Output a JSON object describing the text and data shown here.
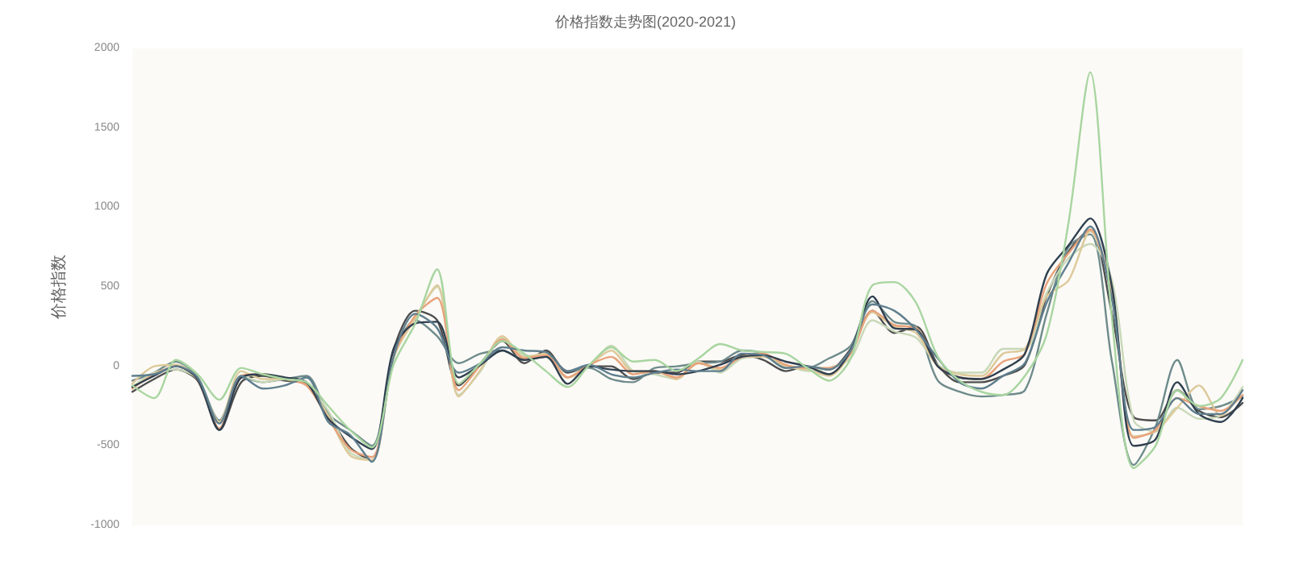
{
  "chart_data": {
    "type": "line",
    "title": "价格指数走势图(2020-2021)",
    "ylabel": "价格指数",
    "categories": [
      null,
      null,
      null,
      null,
      null,
      null,
      null,
      null,
      null,
      null,
      null,
      null,
      null,
      null,
      null,
      null,
      null,
      null,
      null,
      null,
      null,
      null,
      null,
      null,
      null,
      null,
      null,
      null,
      null,
      null,
      null,
      null,
      null,
      null,
      null,
      null,
      null,
      null,
      null,
      null,
      null,
      null,
      null,
      null,
      null,
      null,
      null,
      null,
      null,
      null,
      null,
      null
    ],
    "ylim": [
      -1000,
      2000
    ],
    "yticks": [
      -1000,
      -500,
      0,
      500,
      1000,
      1500,
      2000
    ],
    "grid": false,
    "marker": "none",
    "line_style": "solid",
    "series": [
      {
        "color": "#4d4d4d",
        "values": [
          -160,
          -80,
          -20,
          -90,
          -400,
          -100,
          -60,
          -90,
          -110,
          -300,
          -510,
          -590,
          100,
          350,
          290,
          -120,
          20,
          160,
          20,
          100,
          -40,
          0,
          0,
          -80,
          -40,
          -40,
          30,
          30,
          70,
          40,
          -30,
          0,
          -20,
          110,
          350,
          210,
          250,
          10,
          -100,
          -100,
          -60,
          10,
          440,
          720,
          860,
          330,
          -320,
          -340,
          -150,
          -280,
          -320,
          -230
        ]
      },
      {
        "color": "#6e8b8b",
        "values": [
          -90,
          -40,
          30,
          -70,
          -340,
          -70,
          -100,
          -80,
          -60,
          -300,
          -400,
          -500,
          60,
          290,
          190,
          20,
          80,
          100,
          40,
          60,
          -30,
          -10,
          -80,
          -100,
          -10,
          0,
          20,
          30,
          100,
          80,
          -10,
          -10,
          50,
          130,
          410,
          280,
          250,
          -90,
          -160,
          -190,
          -180,
          -150,
          330,
          750,
          830,
          30,
          -620,
          -380,
          40,
          -270,
          -250,
          -190
        ]
      },
      {
        "color": "#c8d8b8",
        "values": [
          -130,
          -40,
          -20,
          -80,
          -350,
          -60,
          -100,
          -80,
          -120,
          -280,
          -540,
          -590,
          50,
          310,
          500,
          -180,
          -30,
          180,
          70,
          60,
          -70,
          0,
          130,
          -30,
          -50,
          -80,
          30,
          -40,
          50,
          60,
          10,
          -30,
          -10,
          50,
          290,
          220,
          180,
          10,
          -40,
          -40,
          110,
          110,
          460,
          680,
          770,
          540,
          -340,
          -410,
          -260,
          -330,
          -310,
          -130
        ]
      },
      {
        "color": "#ddc99a",
        "values": [
          -110,
          0,
          10,
          -80,
          -350,
          -30,
          -80,
          -80,
          -120,
          -310,
          -560,
          -590,
          60,
          300,
          510,
          -190,
          -20,
          190,
          60,
          80,
          -70,
          10,
          100,
          -30,
          -30,
          -80,
          20,
          -20,
          60,
          60,
          0,
          -20,
          -60,
          80,
          340,
          250,
          210,
          0,
          -50,
          -60,
          80,
          110,
          440,
          540,
          850,
          460,
          -440,
          -410,
          -260,
          -120,
          -310,
          -150
        ]
      },
      {
        "color": "#e8a27a",
        "values": [
          -140,
          -50,
          0,
          -80,
          -390,
          -60,
          -50,
          -80,
          -120,
          -330,
          -520,
          -570,
          60,
          320,
          430,
          -150,
          10,
          170,
          50,
          70,
          -70,
          10,
          60,
          -50,
          -30,
          -70,
          20,
          -10,
          60,
          80,
          10,
          -10,
          -10,
          80,
          350,
          260,
          240,
          0,
          -70,
          -80,
          30,
          80,
          520,
          710,
          860,
          440,
          -450,
          -400,
          -200,
          -250,
          -280,
          -180
        ]
      },
      {
        "color": "#2f3f4f",
        "values": [
          -130,
          -60,
          0,
          -80,
          -400,
          -70,
          -50,
          -70,
          -100,
          -330,
          -440,
          -520,
          110,
          270,
          280,
          -70,
          10,
          100,
          40,
          60,
          -110,
          0,
          -20,
          -30,
          -30,
          -50,
          -30,
          10,
          60,
          70,
          30,
          0,
          -50,
          100,
          440,
          240,
          230,
          0,
          -70,
          -80,
          -20,
          80,
          580,
          760,
          930,
          500,
          -500,
          -460,
          -100,
          -300,
          -350,
          -200
        ]
      },
      {
        "color": "#5f7f8f",
        "values": [
          -60,
          -50,
          0,
          -70,
          -360,
          -60,
          -140,
          -120,
          -70,
          -350,
          -430,
          -600,
          60,
          330,
          240,
          -40,
          20,
          120,
          100,
          90,
          -30,
          10,
          -50,
          -70,
          -40,
          -20,
          -30,
          -30,
          80,
          70,
          -10,
          0,
          -20,
          100,
          390,
          350,
          230,
          50,
          -100,
          -140,
          -60,
          20,
          400,
          650,
          880,
          420,
          -400,
          -380,
          -200,
          -300,
          -300,
          -150
        ]
      },
      {
        "color": "#a8d5a0",
        "values": [
          -120,
          -200,
          40,
          -50,
          -210,
          -10,
          -50,
          -80,
          -100,
          -250,
          -400,
          -510,
          10,
          270,
          610,
          -110,
          20,
          160,
          80,
          -30,
          -130,
          10,
          120,
          30,
          40,
          -30,
          50,
          140,
          100,
          90,
          80,
          -10,
          -90,
          50,
          510,
          530,
          400,
          60,
          -90,
          -160,
          -180,
          -60,
          200,
          900,
          1850,
          300,
          -640,
          -500,
          -150,
          -250,
          -200,
          40
        ]
      }
    ]
  }
}
